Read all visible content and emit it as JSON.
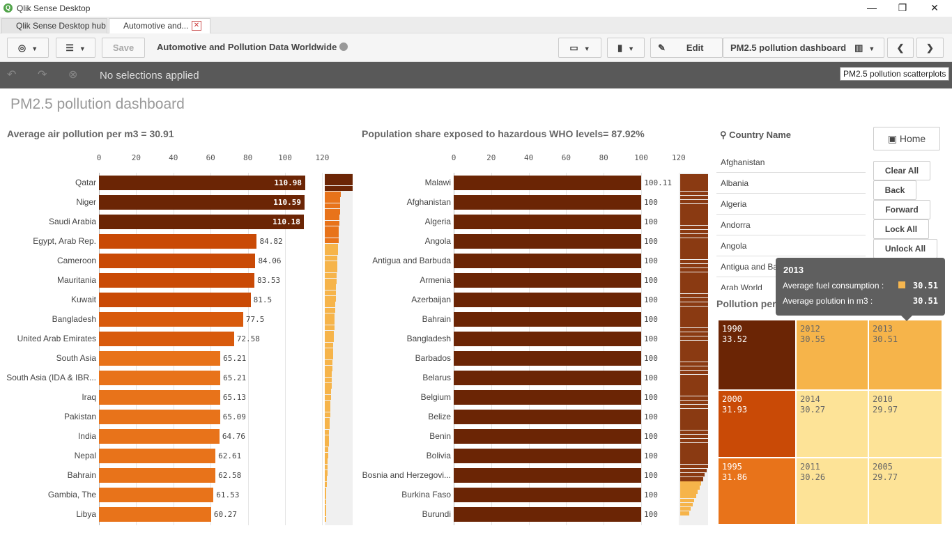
{
  "window": {
    "title": "Qlik Sense Desktop",
    "minimize": "—",
    "restore": "❐",
    "close": "✕"
  },
  "tabs": [
    {
      "label": "Qlik Sense Desktop hub"
    },
    {
      "label": "Automotive and..."
    }
  ],
  "toolbar": {
    "save": "Save",
    "app_title": "Automotive and Pollution Data Worldwide",
    "edit": "Edit",
    "sheet": "PM2.5 pollution dashboard"
  },
  "selections": {
    "text": "No selections applied",
    "hover_tooltip": "PM2.5 pollution scatterplots"
  },
  "page_title": "PM2.5 pollution dashboard",
  "chart1": {
    "title": "Average air pollution per m3 = 30.91",
    "ticks": [
      "0",
      "20",
      "40",
      "60",
      "80",
      "100",
      "120"
    ],
    "type": "bar"
  },
  "chart2": {
    "title": "Population share exposed to hazardous WHO levels= 87.92%",
    "ticks": [
      "0",
      "20",
      "40",
      "60",
      "80",
      "100",
      "120"
    ]
  },
  "chart_data": [
    {
      "type": "bar",
      "title": "Average air pollution per m3 = 30.91",
      "xlim": [
        0,
        120
      ],
      "categories": [
        "Qatar",
        "Niger",
        "Saudi Arabia",
        "Egypt, Arab Rep.",
        "Cameroon",
        "Mauritania",
        "Kuwait",
        "Bangladesh",
        "United Arab Emirates",
        "South Asia",
        "South Asia (IDA & IBR...",
        "Iraq",
        "Pakistan",
        "India",
        "Nepal",
        "Bahrain",
        "Gambia, The",
        "Libya"
      ],
      "values": [
        110.98,
        110.59,
        110.18,
        84.82,
        84.06,
        83.53,
        81.5,
        77.5,
        72.58,
        65.21,
        65.21,
        65.13,
        65.09,
        64.76,
        62.61,
        62.58,
        61.53,
        60.27
      ],
      "labels": [
        "110.98",
        "110.59",
        "110.18",
        "84.82",
        "84.06",
        "83.53",
        "81.5",
        "77.5",
        "72.58",
        "65.21",
        "65.21",
        "65.13",
        "65.09",
        "64.76",
        "62.61",
        "62.58",
        "61.53",
        "60.27"
      ]
    },
    {
      "type": "bar",
      "title": "Population share exposed to hazardous WHO levels= 87.92%",
      "xlim": [
        0,
        120
      ],
      "categories": [
        "Malawi",
        "Afghanistan",
        "Algeria",
        "Angola",
        "Antigua and Barbuda",
        "Armenia",
        "Azerbaijan",
        "Bahrain",
        "Bangladesh",
        "Barbados",
        "Belarus",
        "Belgium",
        "Belize",
        "Benin",
        "Bolivia",
        "Bosnia and Herzegovi...",
        "Burkina Faso",
        "Burundi"
      ],
      "values": [
        100.11,
        100,
        100,
        100,
        100,
        100,
        100,
        100,
        100,
        100,
        100,
        100,
        100,
        100,
        100,
        100,
        100,
        100
      ],
      "labels": [
        "100.11",
        "100",
        "100",
        "100",
        "100",
        "100",
        "100",
        "100",
        "100",
        "100",
        "100",
        "100",
        "100",
        "100",
        "100",
        "100",
        "100",
        "100"
      ]
    },
    {
      "type": "heatmap",
      "title": "Pollution per",
      "cells": [
        {
          "year": "1990",
          "value": "33.52"
        },
        {
          "year": "2012",
          "value": "30.55"
        },
        {
          "year": "2013",
          "value": "30.51"
        },
        {
          "year": "2000",
          "value": "31.93"
        },
        {
          "year": "2014",
          "value": "30.27"
        },
        {
          "year": "2010",
          "value": "29.97"
        },
        {
          "year": "1995",
          "value": "31.86"
        },
        {
          "year": "2011",
          "value": "30.26"
        },
        {
          "year": "2005",
          "value": "29.77"
        }
      ]
    }
  ],
  "listbox": {
    "header": "Country Name",
    "items": [
      "Afghanistan",
      "Albania",
      "Algeria",
      "Andorra",
      "Angola",
      "Antigua and Ba",
      "Arab World"
    ]
  },
  "nav": {
    "home": "Home",
    "clear_all": "Clear All",
    "back": "Back",
    "forward": "Forward",
    "lock_all": "Lock All",
    "unlock_all": "Unlock All"
  },
  "treemap_title": "Pollution per",
  "tooltip": {
    "year": "2013",
    "row1_label": "Average fuel consumption :",
    "row1_value": "30.51",
    "row2_label": "Average polution in m3 :",
    "row2_value": "30.51"
  },
  "colors": {
    "dark": "#6b2505",
    "mid": "#c94a06",
    "orange": "#e8731a",
    "light": "#f6b44a",
    "pale": "#fde397"
  }
}
